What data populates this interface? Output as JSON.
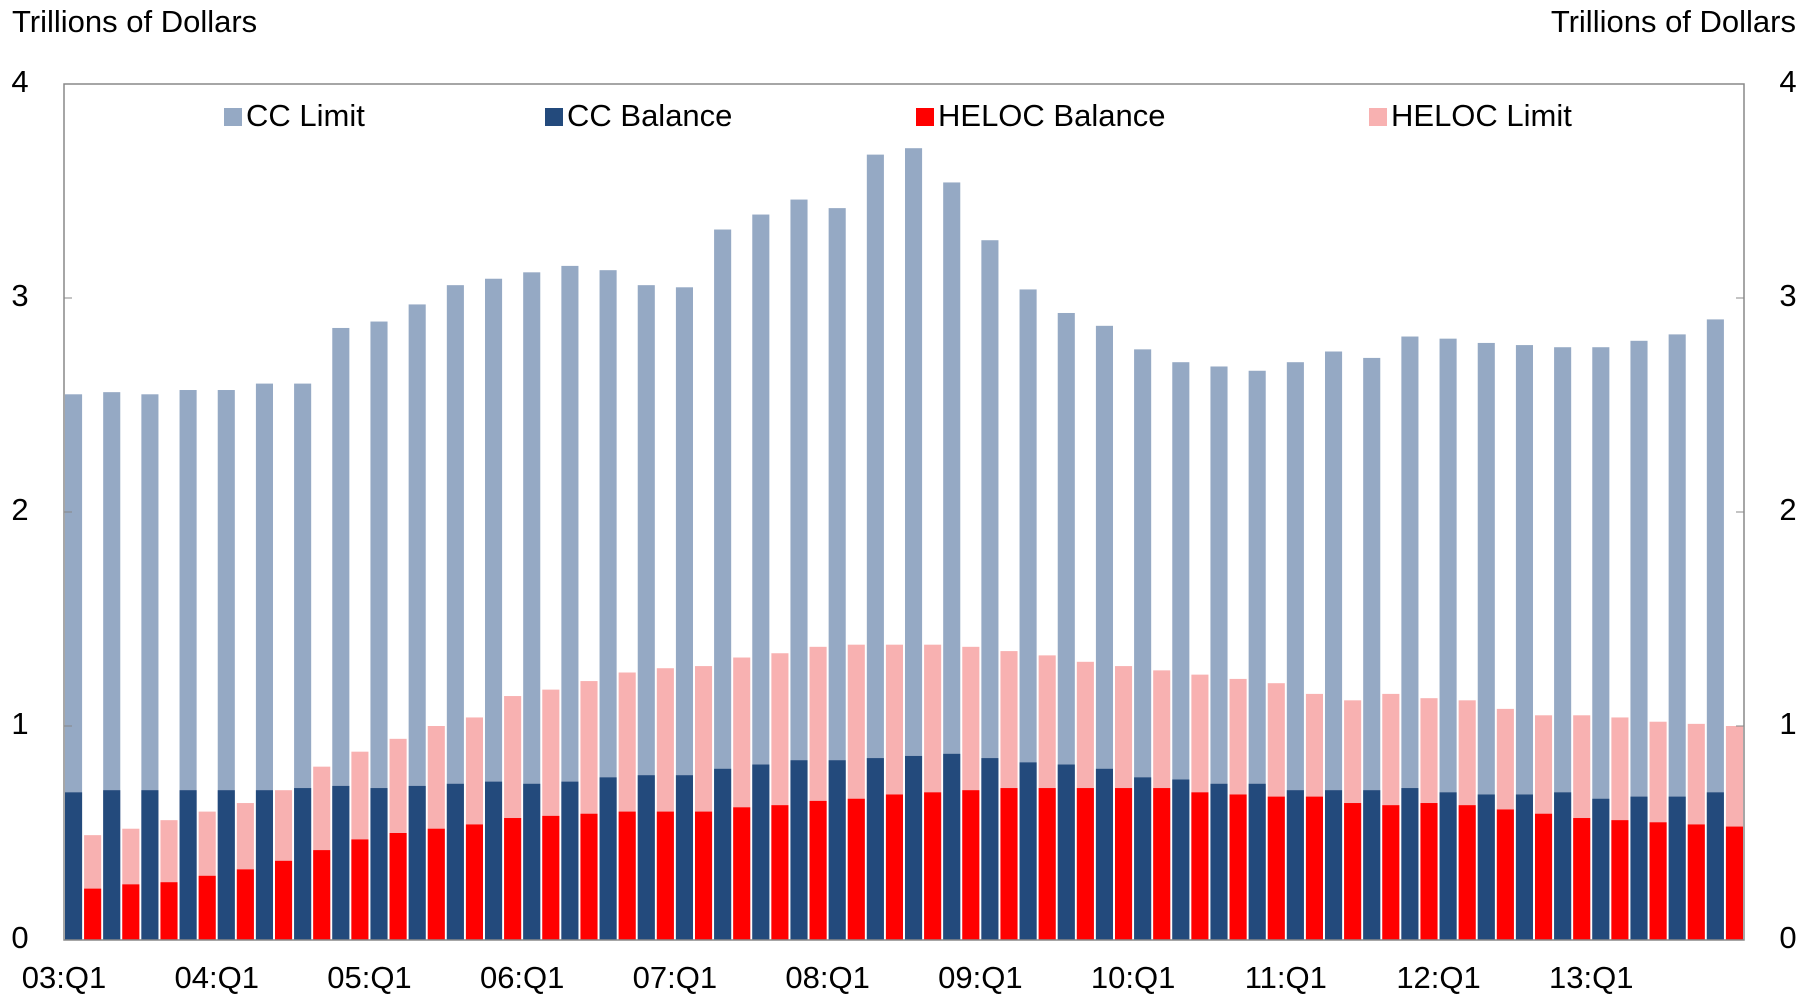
{
  "chart_data": {
    "type": "bar",
    "y_label": "Trillions of Dollars",
    "y2_label": "Trillions of Dollars",
    "categories": [
      "03:Q1",
      null,
      null,
      null,
      "04:Q1",
      null,
      null,
      null,
      "05:Q1",
      null,
      null,
      null,
      "06:Q1",
      null,
      null,
      null,
      "07:Q1",
      null,
      null,
      null,
      "08:Q1",
      null,
      null,
      null,
      "09:Q1",
      null,
      null,
      null,
      "10:Q1",
      null,
      null,
      null,
      "11:Q1",
      null,
      null,
      null,
      "12:Q1",
      null,
      null,
      null,
      "13:Q1",
      null,
      null,
      null
    ],
    "series": [
      {
        "name": "CC Limit",
        "color": "#95a9c4",
        "values": [
          2.55,
          2.56,
          2.55,
          2.57,
          2.57,
          2.6,
          2.6,
          2.86,
          2.89,
          2.97,
          3.06,
          3.09,
          3.12,
          3.15,
          3.13,
          3.06,
          3.05,
          3.32,
          3.39,
          3.46,
          3.42,
          3.67,
          3.7,
          3.54,
          3.27,
          3.04,
          2.93,
          2.87,
          2.76,
          2.7,
          2.68,
          2.66,
          2.7,
          2.75,
          2.72,
          2.82,
          2.81,
          2.79,
          2.78,
          2.77,
          2.77,
          2.8,
          2.83,
          2.9
        ]
      },
      {
        "name": "CC Balance",
        "color": "#234a7c",
        "values": [
          0.69,
          0.7,
          0.7,
          0.7,
          0.7,
          0.7,
          0.71,
          0.72,
          0.71,
          0.72,
          0.73,
          0.74,
          0.73,
          0.74,
          0.76,
          0.77,
          0.77,
          0.8,
          0.82,
          0.84,
          0.84,
          0.85,
          0.86,
          0.87,
          0.85,
          0.83,
          0.82,
          0.8,
          0.76,
          0.75,
          0.73,
          0.73,
          0.7,
          0.7,
          0.7,
          0.71,
          0.69,
          0.68,
          0.68,
          0.69,
          0.66,
          0.67,
          0.67,
          0.69
        ]
      },
      {
        "name": "HELOC Balance",
        "color": "#ff0000",
        "values": [
          0.24,
          0.26,
          0.27,
          0.3,
          0.33,
          0.37,
          0.42,
          0.47,
          0.5,
          0.52,
          0.54,
          0.57,
          0.58,
          0.59,
          0.6,
          0.6,
          0.6,
          0.62,
          0.63,
          0.65,
          0.66,
          0.68,
          0.69,
          0.7,
          0.71,
          0.71,
          0.71,
          0.71,
          0.71,
          0.69,
          0.68,
          0.67,
          0.67,
          0.64,
          0.63,
          0.64,
          0.63,
          0.61,
          0.59,
          0.57,
          0.56,
          0.55,
          0.54,
          0.53
        ]
      },
      {
        "name": "HELOC Limit",
        "color": "#f8b1b1",
        "values": [
          0.49,
          0.52,
          0.56,
          0.6,
          0.64,
          0.7,
          0.81,
          0.88,
          0.94,
          1.0,
          1.04,
          1.14,
          1.17,
          1.21,
          1.25,
          1.27,
          1.28,
          1.32,
          1.34,
          1.37,
          1.38,
          1.38,
          1.38,
          1.37,
          1.35,
          1.33,
          1.3,
          1.28,
          1.26,
          1.24,
          1.22,
          1.2,
          1.15,
          1.12,
          1.15,
          1.13,
          1.12,
          1.08,
          1.05,
          1.05,
          1.04,
          1.02,
          1.01,
          1.0
        ]
      }
    ],
    "ylim": [
      0,
      4
    ],
    "yticks": [
      0,
      1,
      2,
      3,
      4
    ],
    "y2lim": [
      0,
      4
    ],
    "y2ticks": [
      0,
      1,
      2,
      3,
      4
    ],
    "legend": "top"
  }
}
